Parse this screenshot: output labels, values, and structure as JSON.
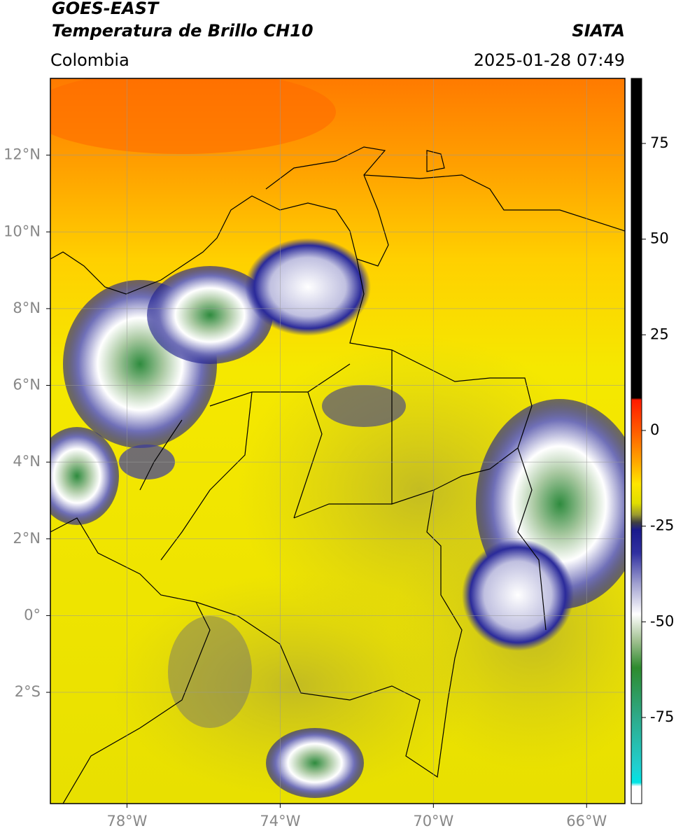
{
  "header": {
    "title": "GOES-EAST",
    "subtitle": "Temperatura de Brillo CH10",
    "source": "SIATA",
    "region": "Colombia",
    "datetime": "2025-01-28 07:49"
  },
  "map": {
    "xlim": [
      -80,
      -65
    ],
    "ylim": [
      -4.9,
      14
    ],
    "xticks": [
      {
        "value": -78,
        "label": "78°W"
      },
      {
        "value": -74,
        "label": "74°W"
      },
      {
        "value": -70,
        "label": "70°W"
      },
      {
        "value": -66,
        "label": "66°W"
      }
    ],
    "yticks": [
      {
        "value": 12,
        "label": "12°N"
      },
      {
        "value": 10,
        "label": "10°N"
      },
      {
        "value": 8,
        "label": "8°N"
      },
      {
        "value": 6,
        "label": "6°N"
      },
      {
        "value": 4,
        "label": "4°N"
      },
      {
        "value": 2,
        "label": "2°N"
      },
      {
        "value": 0,
        "label": "0°"
      },
      {
        "value": -2,
        "label": "2°S"
      }
    ],
    "grid": true
  },
  "colorbar": {
    "lim": [
      -97.5,
      92
    ],
    "ticks": [
      75,
      50,
      25,
      0,
      -25,
      -50,
      -75
    ],
    "stops": [
      {
        "value": 92,
        "color": "#000000"
      },
      {
        "value": 8.5,
        "color": "#000000"
      },
      {
        "value": 8,
        "color": "#ff1a00"
      },
      {
        "value": 0,
        "color": "#ff5a00"
      },
      {
        "value": -8,
        "color": "#ffa500"
      },
      {
        "value": -14,
        "color": "#ffe600"
      },
      {
        "value": -19,
        "color": "#e0de00"
      },
      {
        "value": -22,
        "color": "#9a9a30"
      },
      {
        "value": -24,
        "color": "#404040"
      },
      {
        "value": -26,
        "color": "#1a1a8c"
      },
      {
        "value": -32,
        "color": "#3030a0"
      },
      {
        "value": -40,
        "color": "#a0a0d0"
      },
      {
        "value": -48,
        "color": "#ffffff"
      },
      {
        "value": -55,
        "color": "#a0c090"
      },
      {
        "value": -62,
        "color": "#2e8b2e"
      },
      {
        "value": -75,
        "color": "#2eaa8a"
      },
      {
        "value": -88,
        "color": "#20d0d0"
      },
      {
        "value": -92,
        "color": "#00e5e5"
      },
      {
        "value": -93,
        "color": "#ffffff"
      },
      {
        "value": -97.5,
        "color": "#ffffff"
      }
    ]
  }
}
